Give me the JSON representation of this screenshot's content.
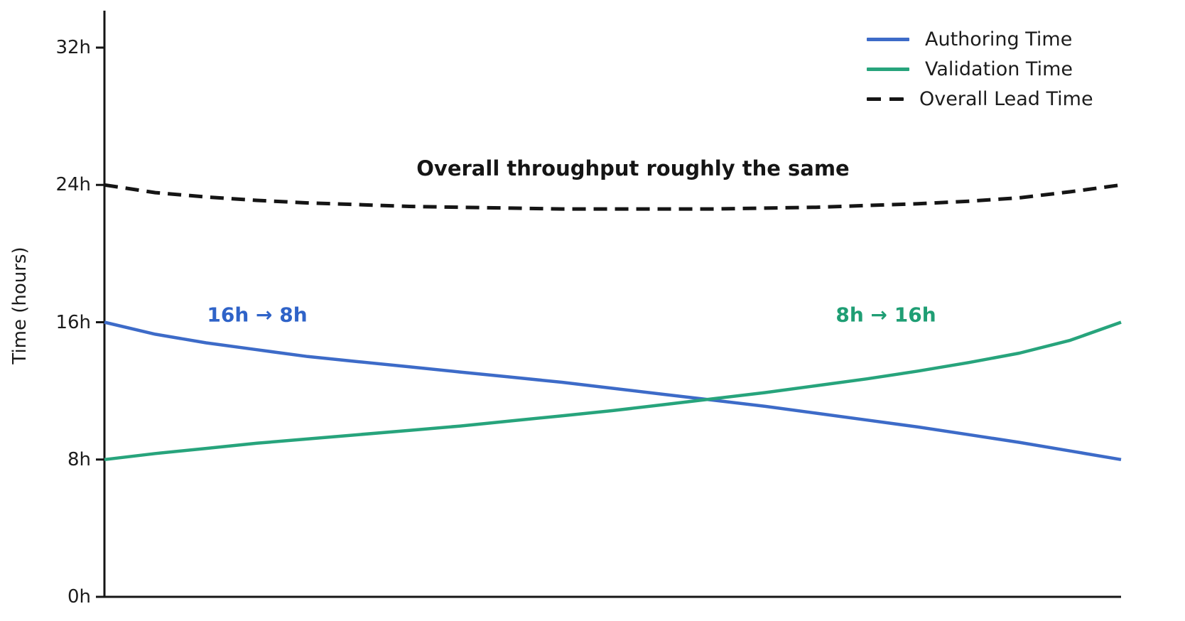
{
  "chart_data": {
    "type": "line",
    "ylabel": "Time (hours)",
    "ytick_values": [
      0,
      8,
      16,
      24,
      32
    ],
    "ytick_labels": [
      "0h",
      "8h",
      "16h",
      "24h",
      "32h"
    ],
    "ylim": [
      0,
      34.2
    ],
    "x_range": [
      0,
      1
    ],
    "x_axis_labels": "none",
    "grid": false,
    "x": [
      0,
      0.05,
      0.1,
      0.15,
      0.2,
      0.25,
      0.3,
      0.35,
      0.4,
      0.45,
      0.5,
      0.55,
      0.6,
      0.65,
      0.7,
      0.75,
      0.8,
      0.85,
      0.9,
      0.95,
      1
    ],
    "series": [
      {
        "name": "Authoring Time",
        "color": "#3d6bc8",
        "style": "solid",
        "start_value_hours": 16,
        "end_value_hours": 8,
        "values": [
          16,
          15.3,
          14.8,
          14.4,
          14.0,
          13.7,
          13.4,
          13.1,
          12.8,
          12.5,
          12.15,
          11.8,
          11.45,
          11.1,
          10.7,
          10.3,
          9.9,
          9.45,
          9.0,
          8.5,
          8.0
        ]
      },
      {
        "name": "Validation Time",
        "color": "#27a47c",
        "style": "solid",
        "start_value_hours": 8,
        "end_value_hours": 16,
        "values": [
          8.0,
          8.35,
          8.65,
          8.95,
          9.2,
          9.45,
          9.7,
          9.95,
          10.25,
          10.55,
          10.85,
          11.2,
          11.55,
          11.9,
          12.3,
          12.7,
          13.15,
          13.65,
          14.2,
          14.95,
          16.0
        ]
      },
      {
        "name": "Overall Lead Time",
        "color": "#151515",
        "style": "dashed",
        "start_value_hours": 24,
        "end_value_hours": 24,
        "values": [
          24.0,
          23.55,
          23.3,
          23.1,
          22.95,
          22.85,
          22.75,
          22.7,
          22.65,
          22.6,
          22.6,
          22.6,
          22.6,
          22.65,
          22.7,
          22.8,
          22.9,
          23.05,
          23.25,
          23.6,
          24.0
        ]
      }
    ],
    "legend": {
      "position": "upper right",
      "frame": false
    },
    "annotations": [
      {
        "text": "Overall throughput roughly the same",
        "color": "#151515",
        "x": 0.52,
        "y": 24.96,
        "role": "title"
      },
      {
        "text": "16h → 8h",
        "color": "#2f63c8",
        "x": 0.15,
        "y": 16.43,
        "role": "side"
      },
      {
        "text": "8h → 16h",
        "color": "#1f9e74",
        "x": 0.769,
        "y": 16.43,
        "role": "side"
      }
    ],
    "axis_color": "#151515"
  }
}
